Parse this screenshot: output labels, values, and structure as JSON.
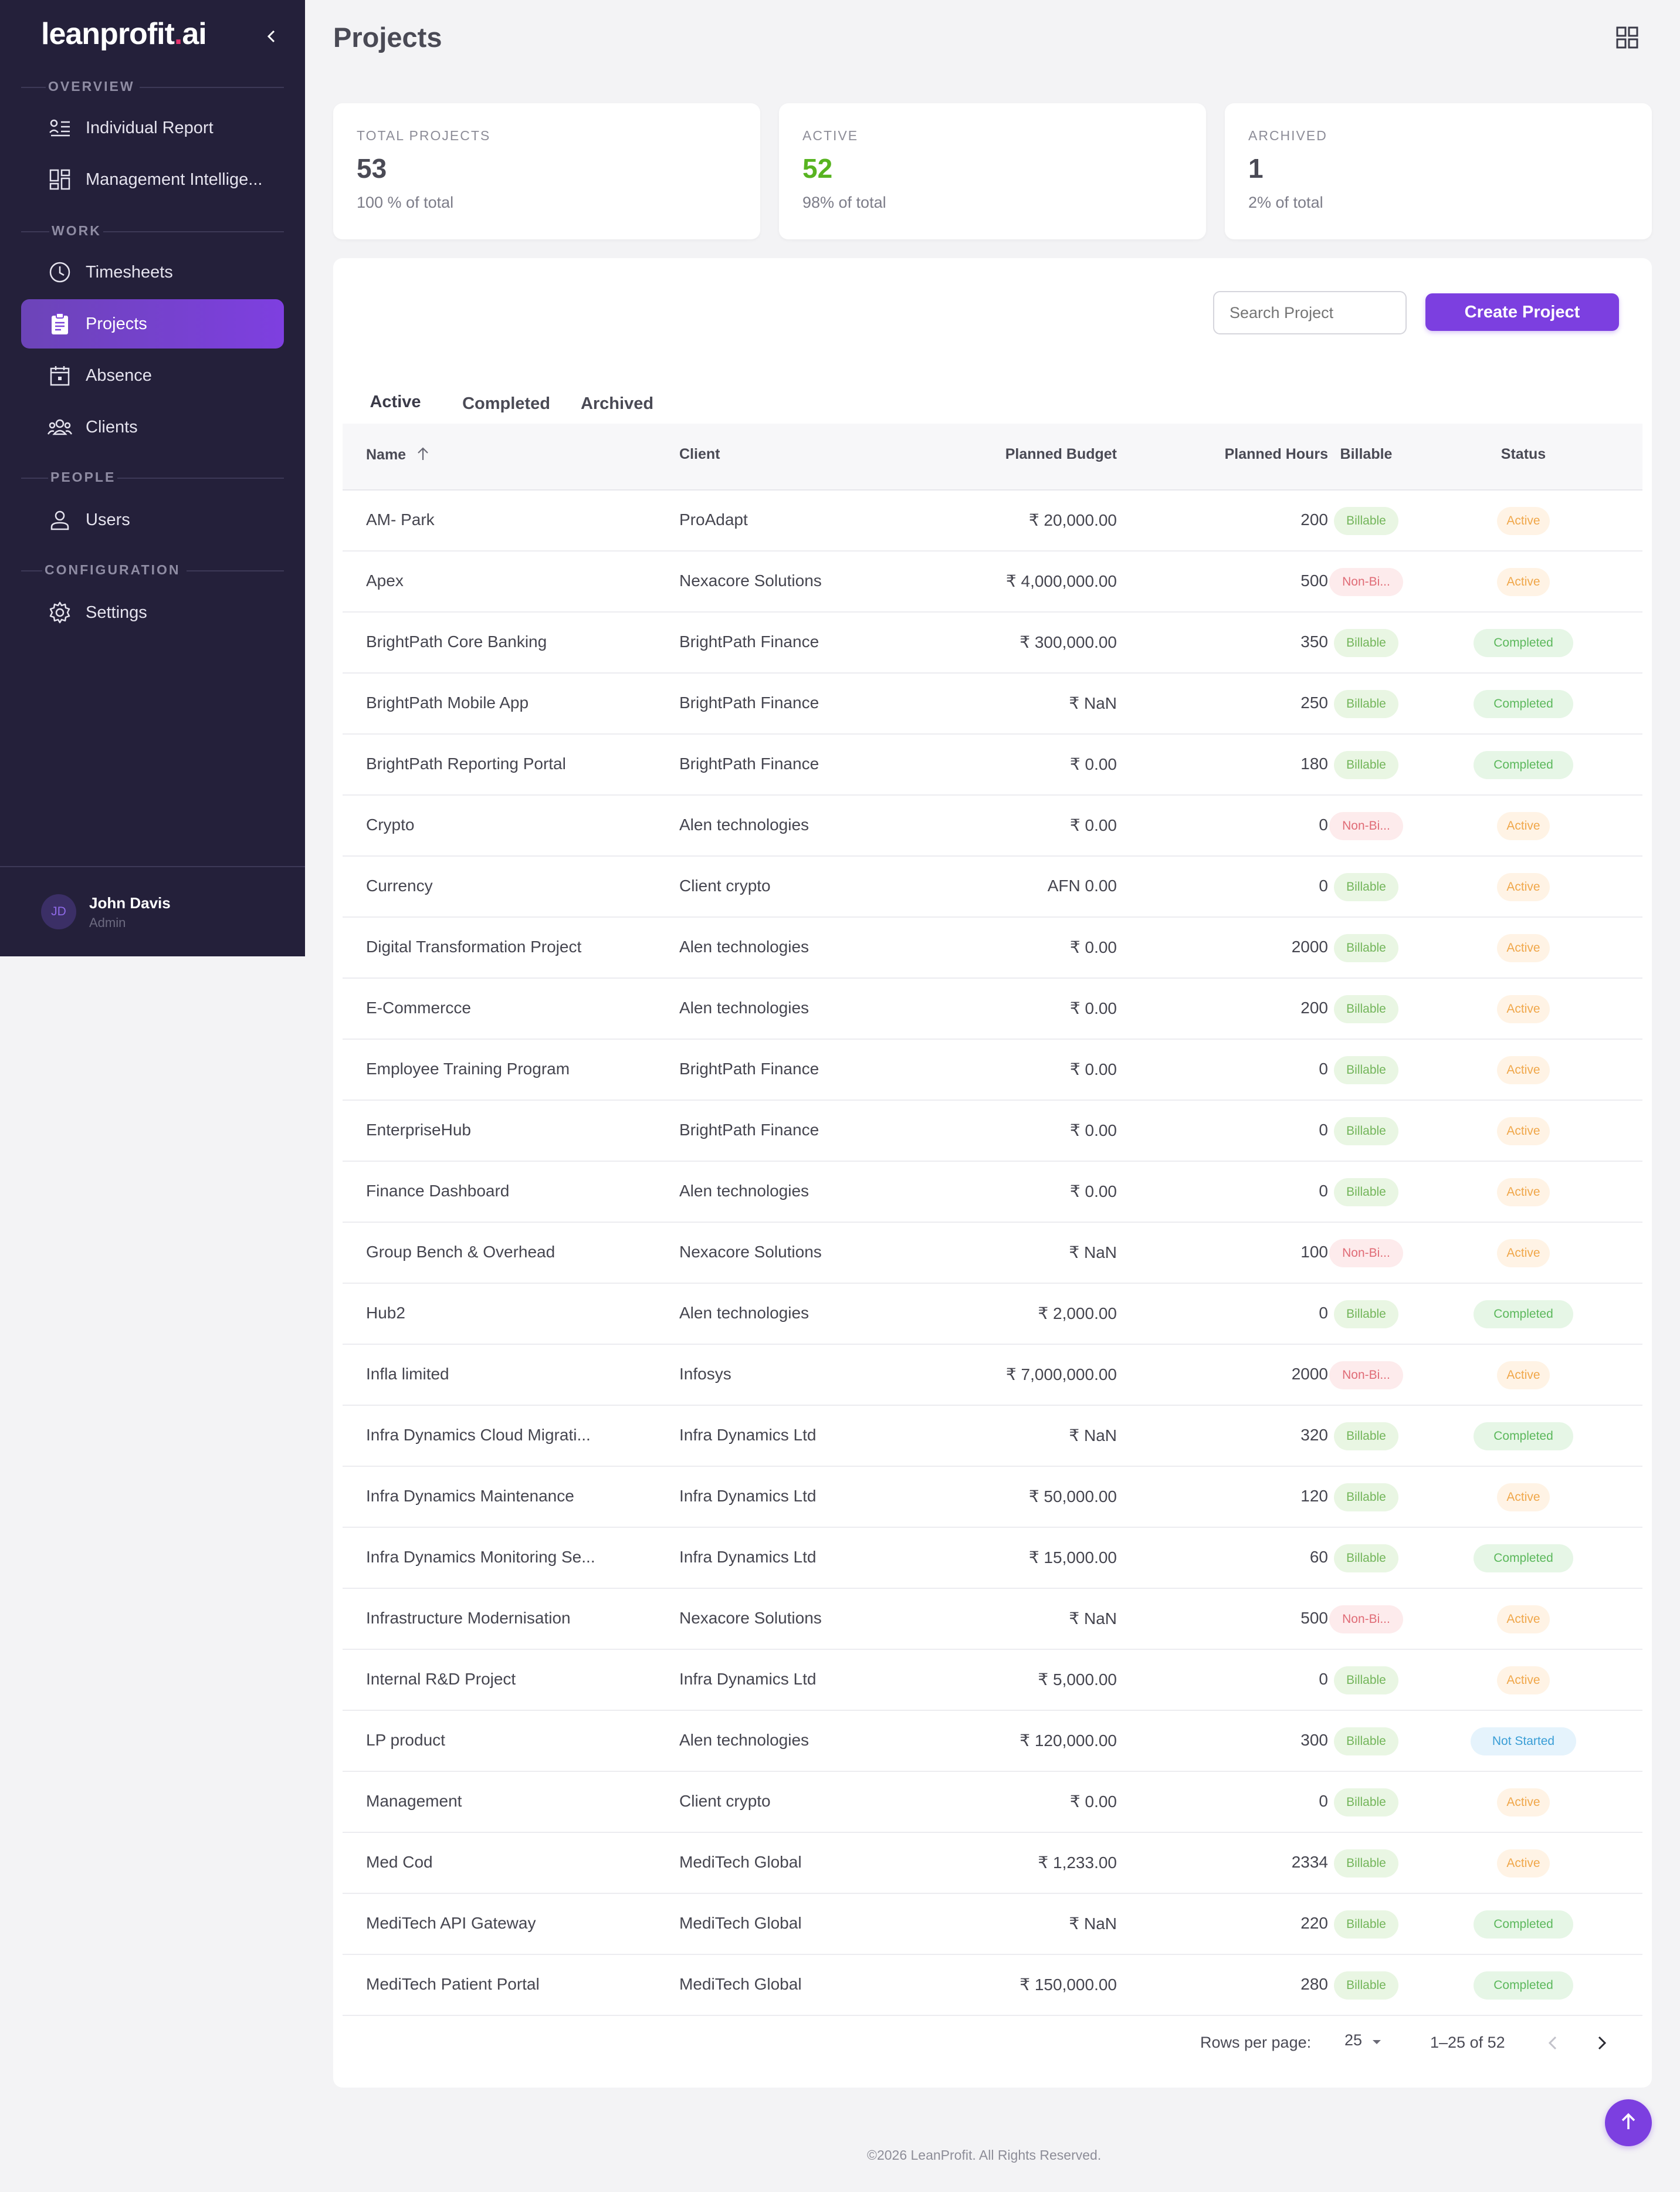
{
  "app": {
    "logo_main": "leanprofit",
    "logo_dot": ".",
    "logo_tld": "ai"
  },
  "sidebar": {
    "sections": {
      "overview": "OVERVIEW",
      "work": "WORK",
      "people": "PEOPLE",
      "configuration": "CONFIGURATION"
    },
    "items": [
      {
        "label": "Individual Report",
        "icon": "report-list-icon"
      },
      {
        "label": "Management Intellige...",
        "icon": "dashboard-icon"
      },
      {
        "label": "Timesheets",
        "icon": "clock-icon"
      },
      {
        "label": "Projects",
        "icon": "clipboard-icon",
        "active": true
      },
      {
        "label": "Absence",
        "icon": "calendar-icon"
      },
      {
        "label": "Clients",
        "icon": "people-group-icon"
      },
      {
        "label": "Users",
        "icon": "user-icon"
      },
      {
        "label": "Settings",
        "icon": "gear-icon"
      }
    ],
    "user": {
      "initials": "JD",
      "name": "John Davis",
      "role": "Admin"
    }
  },
  "header": {
    "title": "Projects"
  },
  "stats": [
    {
      "title": "TOTAL PROJECTS",
      "value": "53",
      "sub": "100 % of total"
    },
    {
      "title": "ACTIVE",
      "value": "52",
      "sub": "98% of total"
    },
    {
      "title": "ARCHIVED",
      "value": "1",
      "sub": "2% of total"
    }
  ],
  "toolbar": {
    "search_placeholder": "Search Project",
    "create_label": "Create Project"
  },
  "tabs": [
    "Active",
    "Completed",
    "Archived"
  ],
  "table": {
    "headers": {
      "name": "Name",
      "client": "Client",
      "budget": "Planned Budget",
      "hours": "Planned Hours",
      "billable": "Billable",
      "status": "Status"
    },
    "rows": [
      {
        "name": "AM- Park",
        "client": "ProAdapt",
        "budget": "₹ 20,000.00",
        "hours": "200",
        "billable": "Billable",
        "status": "Active"
      },
      {
        "name": "Apex",
        "client": "Nexacore Solutions",
        "budget": "₹ 4,000,000.00",
        "hours": "500",
        "billable": "Non-Bi...",
        "status": "Active"
      },
      {
        "name": "BrightPath Core Banking",
        "client": "BrightPath Finance",
        "budget": "₹ 300,000.00",
        "hours": "350",
        "billable": "Billable",
        "status": "Completed"
      },
      {
        "name": "BrightPath Mobile App",
        "client": "BrightPath Finance",
        "budget": "₹ NaN",
        "hours": "250",
        "billable": "Billable",
        "status": "Completed"
      },
      {
        "name": "BrightPath Reporting Portal",
        "client": "BrightPath Finance",
        "budget": "₹ 0.00",
        "hours": "180",
        "billable": "Billable",
        "status": "Completed"
      },
      {
        "name": "Crypto",
        "client": "Alen technologies",
        "budget": "₹ 0.00",
        "hours": "0",
        "billable": "Non-Bi...",
        "status": "Active"
      },
      {
        "name": "Currency",
        "client": "Client crypto",
        "budget": "AFN 0.00",
        "hours": "0",
        "billable": "Billable",
        "status": "Active"
      },
      {
        "name": "Digital Transformation Project",
        "client": "Alen technologies",
        "budget": "₹ 0.00",
        "hours": "2000",
        "billable": "Billable",
        "status": "Active"
      },
      {
        "name": "E-Commercce",
        "client": "Alen technologies",
        "budget": "₹ 0.00",
        "hours": "200",
        "billable": "Billable",
        "status": "Active"
      },
      {
        "name": "Employee Training Program",
        "client": "BrightPath Finance",
        "budget": "₹ 0.00",
        "hours": "0",
        "billable": "Billable",
        "status": "Active"
      },
      {
        "name": "EnterpriseHub",
        "client": "BrightPath Finance",
        "budget": "₹ 0.00",
        "hours": "0",
        "billable": "Billable",
        "status": "Active"
      },
      {
        "name": "Finance Dashboard",
        "client": "Alen technologies",
        "budget": "₹ 0.00",
        "hours": "0",
        "billable": "Billable",
        "status": "Active"
      },
      {
        "name": "Group Bench & Overhead",
        "client": "Nexacore Solutions",
        "budget": "₹ NaN",
        "hours": "100",
        "billable": "Non-Bi...",
        "status": "Active"
      },
      {
        "name": "Hub2",
        "client": "Alen technologies",
        "budget": "₹ 2,000.00",
        "hours": "0",
        "billable": "Billable",
        "status": "Completed"
      },
      {
        "name": "Infla limited",
        "client": "Infosys",
        "budget": "₹ 7,000,000.00",
        "hours": "2000",
        "billable": "Non-Bi...",
        "status": "Active"
      },
      {
        "name": "Infra Dynamics Cloud Migrati...",
        "client": "Infra Dynamics Ltd",
        "budget": "₹ NaN",
        "hours": "320",
        "billable": "Billable",
        "status": "Completed"
      },
      {
        "name": "Infra Dynamics Maintenance",
        "client": "Infra Dynamics Ltd",
        "budget": "₹ 50,000.00",
        "hours": "120",
        "billable": "Billable",
        "status": "Active"
      },
      {
        "name": "Infra Dynamics Monitoring Se...",
        "client": "Infra Dynamics Ltd",
        "budget": "₹ 15,000.00",
        "hours": "60",
        "billable": "Billable",
        "status": "Completed"
      },
      {
        "name": "Infrastructure Modernisation",
        "client": "Nexacore Solutions",
        "budget": "₹ NaN",
        "hours": "500",
        "billable": "Non-Bi...",
        "status": "Active"
      },
      {
        "name": "Internal R&D Project",
        "client": "Infra Dynamics Ltd",
        "budget": "₹ 5,000.00",
        "hours": "0",
        "billable": "Billable",
        "status": "Active"
      },
      {
        "name": "LP product",
        "client": "Alen technologies",
        "budget": "₹ 120,000.00",
        "hours": "300",
        "billable": "Billable",
        "status": "Not Started"
      },
      {
        "name": "Management",
        "client": "Client crypto",
        "budget": "₹ 0.00",
        "hours": "0",
        "billable": "Billable",
        "status": "Active"
      },
      {
        "name": "Med Cod",
        "client": "MediTech Global",
        "budget": "₹ 1,233.00",
        "hours": "2334",
        "billable": "Billable",
        "status": "Active"
      },
      {
        "name": "MediTech API Gateway",
        "client": "MediTech Global",
        "budget": "₹ NaN",
        "hours": "220",
        "billable": "Billable",
        "status": "Completed"
      },
      {
        "name": "MediTech Patient Portal",
        "client": "MediTech Global",
        "budget": "₹ 150,000.00",
        "hours": "280",
        "billable": "Billable",
        "status": "Completed"
      }
    ]
  },
  "pagination": {
    "rows_label": "Rows per page:",
    "rows_value": "25",
    "range": "1–25 of 52"
  },
  "footer": {
    "text": "©2026 LeanProfit. All Rights Reserved."
  }
}
